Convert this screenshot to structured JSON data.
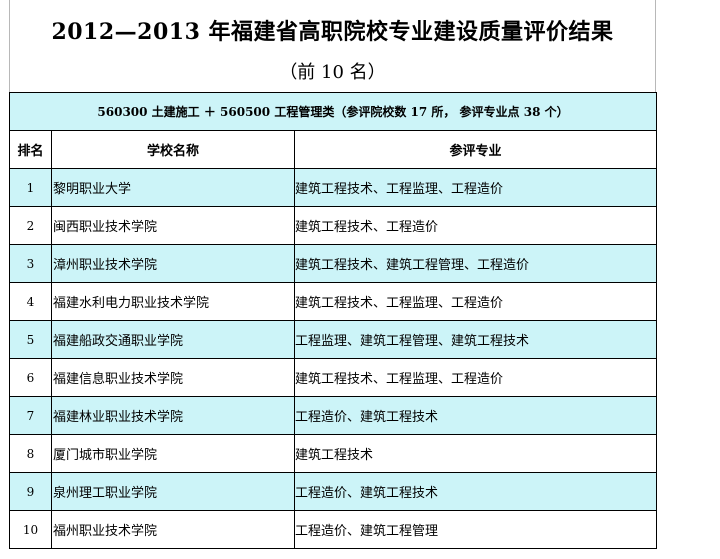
{
  "title": "2012—2013 年福建省高职院校专业建设质量评价结果",
  "subtitle": "（前 10 名）",
  "category": "560300 土建施工 ＋ 560500 工程管理类（参评院校数 17 所， 参评专业点 38 个）",
  "headers": {
    "rank": "排名",
    "school": "学校名称",
    "majors": "参评专业"
  },
  "rows": [
    {
      "rank": "1",
      "school": "黎明职业大学",
      "majors": "建筑工程技术、工程监理、工程造价"
    },
    {
      "rank": "2",
      "school": "闽西职业技术学院",
      "majors": "建筑工程技术、工程造价"
    },
    {
      "rank": "3",
      "school": "漳州职业技术学院",
      "majors": "建筑工程技术、建筑工程管理、工程造价"
    },
    {
      "rank": "4",
      "school": "福建水利电力职业技术学院",
      "majors": "建筑工程技术、工程监理、工程造价"
    },
    {
      "rank": "5",
      "school": "福建船政交通职业学院",
      "majors": "工程监理、建筑工程管理、建筑工程技术"
    },
    {
      "rank": "6",
      "school": "福建信息职业技术学院",
      "majors": "建筑工程技术、工程监理、工程造价"
    },
    {
      "rank": "7",
      "school": "福建林业职业技术学院",
      "majors": "工程造价、建筑工程技术"
    },
    {
      "rank": "8",
      "school": "厦门城市职业学院",
      "majors": "建筑工程技术"
    },
    {
      "rank": "9",
      "school": "泉州理工职业学院",
      "majors": "工程造价、建筑工程技术"
    },
    {
      "rank": "10",
      "school": "福州职业技术学院",
      "majors": "工程造价、建筑工程管理"
    }
  ],
  "colors": {
    "shade": "#ccf4f8",
    "border": "#000000"
  }
}
